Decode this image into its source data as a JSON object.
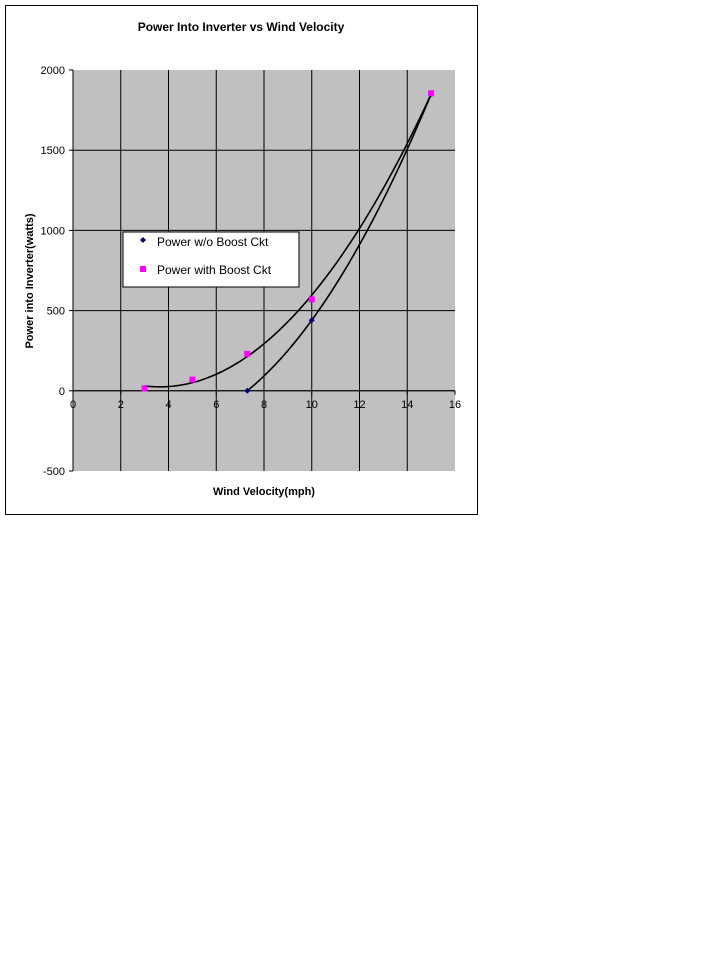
{
  "chart_data": {
    "type": "scatter",
    "title": "Power Into Inverter vs Wind Velocity",
    "xlabel": "Wind Velocity(mph)",
    "ylabel": "Power into Inverter(watts)",
    "xlim": [
      0,
      16
    ],
    "ylim": [
      -500,
      2000
    ],
    "xticks": [
      0,
      2,
      4,
      6,
      8,
      10,
      12,
      14,
      16
    ],
    "yticks": [
      -500,
      0,
      500,
      1000,
      1500,
      2000
    ],
    "grid": true,
    "legend_position": "left-middle",
    "colors": {
      "plot_background": "#c0c0c0",
      "grid": "#000000",
      "series1_marker": "#000080",
      "series2_marker": "#ff00ff",
      "trendline": "#000000"
    },
    "series": [
      {
        "name": "Power w/o Boost Ckt",
        "marker": "diamond",
        "color": "#000080",
        "x": [
          7.3,
          10,
          15
        ],
        "y": [
          0,
          440,
          1850
        ]
      },
      {
        "name": "Power with Boost Ckt",
        "marker": "square",
        "color": "#ff00ff",
        "x": [
          3,
          5,
          7.3,
          10,
          15
        ],
        "y": [
          15,
          70,
          230,
          570,
          1855
        ]
      }
    ]
  }
}
